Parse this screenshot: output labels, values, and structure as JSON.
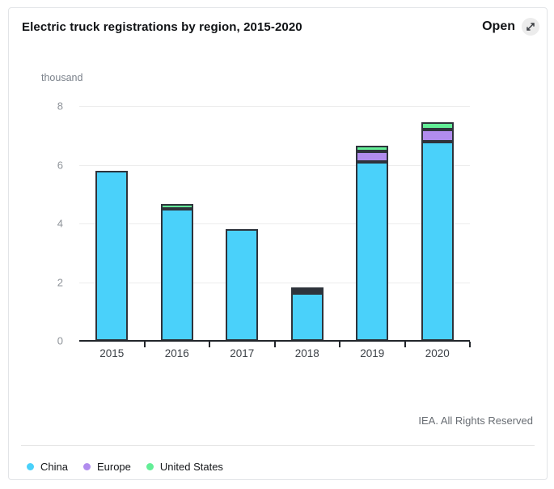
{
  "header": {
    "title": "Electric truck registrations by region, 2015-2020",
    "open_label": "Open",
    "open_icon": "expand-diagonal-icon"
  },
  "chart_data": {
    "type": "bar",
    "stacked": true,
    "title": "Electric truck registrations by region, 2015-2020",
    "unit_label": "thousand",
    "categories": [
      "2015",
      "2016",
      "2017",
      "2018",
      "2019",
      "2020"
    ],
    "series": [
      {
        "name": "China",
        "color": "#4ad1fa",
        "values": [
          5.8,
          4.5,
          3.8,
          1.62,
          6.1,
          6.8
        ]
      },
      {
        "name": "Europe",
        "color": "#b18cee",
        "values": [
          0,
          0,
          0,
          0.08,
          0.37,
          0.4
        ]
      },
      {
        "name": "United States",
        "color": "#63ee97",
        "values": [
          0,
          0.16,
          0,
          0.12,
          0.18,
          0.25
        ]
      }
    ],
    "totals": [
      5.8,
      4.66,
      3.8,
      1.82,
      6.65,
      7.45
    ],
    "ylim": [
      0,
      8
    ],
    "yticks": [
      0,
      2,
      4,
      6,
      8
    ],
    "grid": true,
    "bar_outline_color": "#2e333b",
    "legend_position": "bottom"
  },
  "footer": {
    "source": "IEA. All Rights Reserved"
  }
}
